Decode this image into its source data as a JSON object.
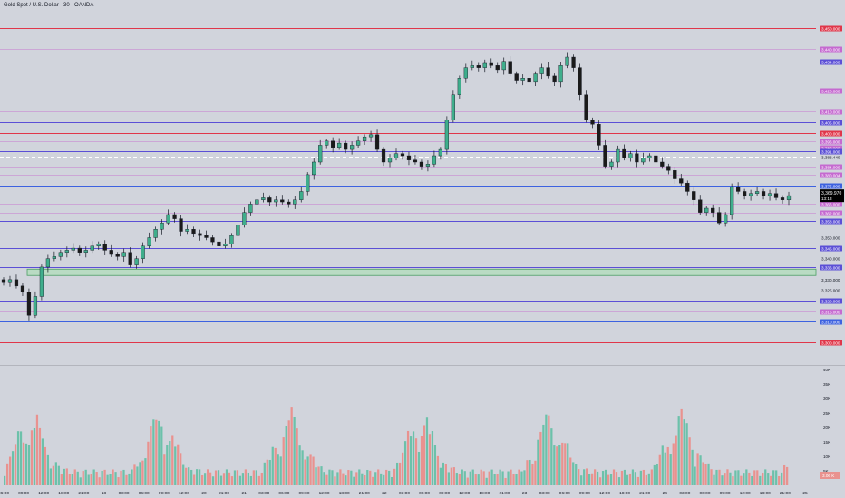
{
  "header": {
    "title": "Gold Spot / U.S. Dollar · 30 · OANDA"
  },
  "colors": {
    "background": "#d1d4dc",
    "up": "#3fae8c",
    "down": "#1a1a1a",
    "volume_up": "#6cc1aa",
    "volume_down": "#e9928f",
    "red_line": "#e0364a",
    "purple_line": "#5b4fd6",
    "blue_line": "#3d62e0",
    "magenta_line": "#c56ad0",
    "zone_fill": "#b7dcc1",
    "zone_border": "#3d9a56",
    "price_badge": "#000000"
  },
  "chart_data": {
    "type": "candlestick",
    "symbol": "Gold Spot / U.S. Dollar",
    "interval": "30",
    "source": "OANDA",
    "ylim": [
      3292,
      3458
    ],
    "current_price": {
      "value": "3,369.970",
      "countdown": "13:13"
    },
    "dashed_level": "3,388.440",
    "zone": {
      "low": 3332,
      "high": 3335
    },
    "levels": [
      {
        "label": "3,450.000",
        "color": "red",
        "style": "thick"
      },
      {
        "label": "3,440.000",
        "color": "magenta",
        "style": "thin"
      },
      {
        "label": "3,434.000",
        "color": "purple",
        "style": "thick"
      },
      {
        "label": "3,420.000",
        "color": "magenta",
        "style": "thin"
      },
      {
        "label": "3,410.000",
        "color": "magenta",
        "style": "thin"
      },
      {
        "label": "3,405.000",
        "color": "purple",
        "style": "thick"
      },
      {
        "label": "3,400.000",
        "color": "red",
        "style": "thick"
      },
      {
        "label": "3,396.000",
        "color": "magenta",
        "style": "thin"
      },
      {
        "label": "3,393.000",
        "color": "magenta",
        "style": "thin"
      },
      {
        "label": "3,391.000",
        "color": "purple",
        "style": "thick"
      },
      {
        "label": "3,384.000",
        "color": "magenta",
        "style": "thin"
      },
      {
        "label": "3,380.004",
        "color": "magenta",
        "style": "thin"
      },
      {
        "label": "3,375.000",
        "color": "blue",
        "style": "thick"
      },
      {
        "label": "3,370.000",
        "color": "magenta",
        "style": "thin"
      },
      {
        "label": "3,366.000",
        "color": "magenta",
        "style": "thin"
      },
      {
        "label": "3,362.000",
        "color": "magenta",
        "style": "thin"
      },
      {
        "label": "3,358.000",
        "color": "purple",
        "style": "thick"
      },
      {
        "label": "3,345.000",
        "color": "purple",
        "style": "thick"
      },
      {
        "label": "3,336.000",
        "color": "purple",
        "style": "thick"
      },
      {
        "label": "3,320.000",
        "color": "purple",
        "style": "thick"
      },
      {
        "label": "3,315.000",
        "color": "magenta",
        "style": "thin"
      },
      {
        "label": "3,310.000",
        "color": "blue",
        "style": "thick"
      },
      {
        "label": "3,300.000",
        "color": "red",
        "style": "thick"
      }
    ],
    "axis_ticks": [
      "3,350.000",
      "3,340.000",
      "3,330.000",
      "3,325.000"
    ],
    "volume_ticks": [
      "40K",
      "35K",
      "30K",
      "25K",
      "20K",
      "15K",
      "10K",
      "5K"
    ],
    "volume_ylim": [
      0,
      40000
    ],
    "current_volume": "3.06 K",
    "x_labels": [
      "06:00",
      "09:00",
      "12:00",
      "18:00",
      "21:00",
      "18",
      "03:00",
      "06:00",
      "09:00",
      "12:00",
      "20",
      "21:00",
      "21",
      "03:00",
      "06:00",
      "09:00",
      "12:00",
      "18:00",
      "21:00",
      "22",
      "03:00",
      "06:00",
      "09:00",
      "12:00",
      "18:00",
      "21:00",
      "23",
      "03:00",
      "06:00",
      "09:00",
      "12:00",
      "18:00",
      "21:00",
      "24",
      "03:00",
      "06:00",
      "09:00",
      "12:00",
      "18:00",
      "21:00",
      "25"
    ],
    "closes": [
      3329,
      3330,
      3327,
      3324,
      3313,
      3322,
      3336,
      3340,
      3341,
      3343,
      3344,
      3345,
      3343,
      3344,
      3346,
      3347,
      3344,
      3342,
      3341,
      3343,
      3337,
      3340,
      3346,
      3350,
      3354,
      3357,
      3361,
      3359,
      3353,
      3354,
      3352,
      3351,
      3350,
      3348,
      3346,
      3347,
      3351,
      3356,
      3362,
      3366,
      3368,
      3369,
      3367,
      3368,
      3367,
      3366,
      3368,
      3372,
      3380,
      3386,
      3394,
      3396,
      3393,
      3395,
      3392,
      3394,
      3396,
      3398,
      3399,
      3392,
      3386,
      3388,
      3390,
      3389,
      3387,
      3386,
      3384,
      3385,
      3389,
      3392,
      3406,
      3418,
      3426,
      3431,
      3432,
      3431,
      3433,
      3432,
      3430,
      3434,
      3428,
      3425,
      3426,
      3424,
      3428,
      3431,
      3427,
      3424,
      3432,
      3436,
      3431,
      3418,
      3406,
      3404,
      3394,
      3384,
      3386,
      3392,
      3388,
      3390,
      3386,
      3388,
      3389,
      3386,
      3384,
      3382,
      3378,
      3376,
      3372,
      3368,
      3362,
      3364,
      3362,
      3357,
      3361,
      3374,
      3372,
      3370,
      3371,
      3372,
      3370,
      3371,
      3369,
      3368,
      3370
    ]
  }
}
